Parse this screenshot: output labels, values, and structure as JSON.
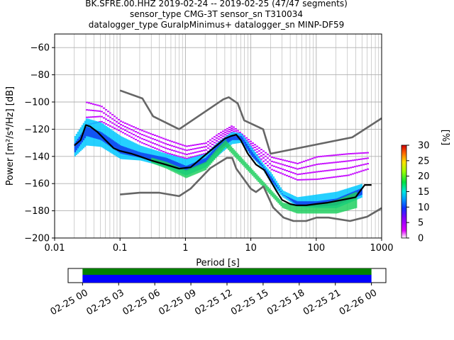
{
  "title_lines": [
    "BK.SFRE.00.HHZ   2019-02-24 -- 2019-02-25  (47/47 segments)",
    "sensor_type CMG-3T sensor_sn T310034",
    "datalogger_type GuralpMinimus+ datalogger_sn MINP-DF59"
  ],
  "chart_data": [
    {
      "type": "heatmap",
      "xlabel": "Period [s]",
      "ylabel": "Power [m²/s⁴/Hz] [dB]",
      "xscale": "log",
      "xlim": [
        0.01,
        1000
      ],
      "ylim": [
        -200,
        -50
      ],
      "xticks": [
        0.01,
        0.1,
        1,
        10,
        100,
        1000
      ],
      "xtick_labels": [
        "0.01",
        "0.1",
        "1",
        "10",
        "100",
        "1000"
      ],
      "yticks": [
        -200,
        -180,
        -160,
        -140,
        -120,
        -100,
        -80,
        -60
      ],
      "ytick_labels": [
        "−200",
        "−180",
        "−160",
        "−140",
        "−120",
        "−100",
        "−80",
        "−60"
      ],
      "grid": true,
      "colorbar": {
        "label": "[%]",
        "range": [
          0,
          30
        ],
        "ticks": [
          0,
          5,
          10,
          15,
          20,
          25,
          30
        ],
        "tick_labels": [
          "0",
          "5",
          "10",
          "15",
          "20",
          "25",
          "30"
        ]
      },
      "series": [
        {
          "role": "median",
          "color": "#000000",
          "x": [
            0.02,
            0.025,
            0.03,
            0.035,
            0.045,
            0.06,
            0.08,
            0.1,
            0.15,
            0.2,
            0.3,
            0.5,
            0.8,
            1.2,
            2,
            3,
            4,
            5,
            6,
            7,
            9,
            12,
            16,
            20,
            25,
            30,
            40,
            50,
            70,
            100,
            150,
            250,
            400,
            550,
            700
          ],
          "y": [
            -132,
            -128,
            -117,
            -118,
            -122,
            -128,
            -134,
            -136,
            -138,
            -140,
            -143,
            -146,
            -149,
            -148,
            -139,
            -132,
            -127,
            -125,
            -124,
            -128,
            -138,
            -146,
            -150,
            -158,
            -166,
            -172,
            -175,
            -176,
            -176,
            -175,
            -174,
            -172,
            -170,
            -161,
            -161
          ]
        },
        {
          "role": "noise-model-high",
          "color": "#666666",
          "x": [
            0.1,
            0.22,
            0.32,
            0.8,
            3.8,
            4.6,
            6.3,
            7.9,
            15.4,
            20,
            354.8,
            1000
          ],
          "y": [
            -91.5,
            -97.4,
            -110.5,
            -120,
            -98,
            -96.5,
            -101,
            -113.5,
            -120,
            -138,
            -126,
            -112
          ]
        },
        {
          "role": "noise-model-low",
          "color": "#666666",
          "x": [
            0.1,
            0.2,
            0.4,
            0.8,
            1.2,
            2.4,
            4.3,
            5.2,
            6,
            10,
            12,
            15.6,
            21.9,
            31.6,
            45,
            70,
            101,
            154,
            328,
            600,
            1000
          ],
          "y": [
            -168,
            -166.7,
            -166.7,
            -169.2,
            -163.7,
            -148.6,
            -141.1,
            -141.1,
            -149,
            -163.8,
            -166.2,
            -162.1,
            -177.5,
            -185,
            -187.5,
            -187.5,
            -185,
            -185,
            -187.5,
            -184.4,
            -178
          ]
        }
      ],
      "density_bands": [
        {
          "x": [
            0.02,
            0.03,
            0.05,
            0.1,
            0.2,
            0.5,
            1,
            2,
            3,
            5,
            7,
            10,
            15,
            20,
            30,
            50,
            100,
            200,
            500
          ],
          "y_low": [
            -140,
            -132,
            -133,
            -142,
            -143,
            -148,
            -154,
            -148,
            -140,
            -131,
            -130,
            -140,
            -150,
            -160,
            -170,
            -177,
            -178,
            -178,
            -170
          ],
          "y_high": [
            -125,
            -112,
            -115,
            -125,
            -132,
            -138,
            -142,
            -138,
            -130,
            -122,
            -123,
            -133,
            -145,
            -152,
            -165,
            -170,
            -168,
            -166,
            -160
          ],
          "color": "#00c8ff"
        },
        {
          "x": [
            0.02,
            0.03,
            0.05,
            0.1,
            0.2,
            0.5,
            1,
            2,
            3,
            5,
            7,
            10,
            15,
            20,
            30,
            50,
            100,
            200,
            500
          ],
          "y_low": [
            -137,
            -125,
            -128,
            -138,
            -141,
            -146,
            -151,
            -145,
            -136,
            -128,
            -128,
            -140,
            -148,
            -158,
            -168,
            -176,
            -177,
            -176,
            -168
          ],
          "y_high": [
            -130,
            -118,
            -122,
            -132,
            -137,
            -141,
            -147,
            -141,
            -132,
            -124,
            -125,
            -136,
            -147,
            -155,
            -168,
            -173,
            -173,
            -171,
            -163
          ],
          "color": "#1040f0"
        },
        {
          "x": [
            0.3,
            0.5,
            1,
            2,
            3,
            4,
            30,
            50,
            100,
            200,
            400
          ],
          "y_low": [
            -145,
            -149,
            -156,
            -150,
            -140,
            -133,
            -178,
            -182,
            -182,
            -182,
            -178
          ],
          "y_high": [
            -141,
            -144,
            -150,
            -144,
            -134,
            -128,
            -174,
            -176,
            -175,
            -172,
            -166
          ],
          "color": "#20d060"
        }
      ],
      "scatter_bands": [
        {
          "x": [
            0.03,
            0.05,
            0.1,
            0.2,
            0.5,
            1,
            2,
            3,
            5,
            10,
            20,
            50,
            100,
            300,
            600
          ],
          "y_low": [
            -118,
            -115,
            -122,
            -130,
            -138,
            -142,
            -138,
            -130,
            -122,
            -135,
            -150,
            -158,
            -158,
            -155,
            -150
          ],
          "y_high": [
            -96,
            -100,
            -112,
            -118,
            -125,
            -130,
            -128,
            -122,
            -116,
            -128,
            -138,
            -142,
            -136,
            -134,
            -134
          ],
          "color": "#c814ff"
        }
      ]
    },
    {
      "type": "timeline",
      "tick_labels": [
        "02-25 00",
        "02-25 03",
        "02-25 06",
        "02-25 09",
        "02-25 12",
        "02-25 15",
        "02-25 18",
        "02-25 21",
        "02-26 00"
      ],
      "hours": [
        0,
        3,
        6,
        9,
        12,
        15,
        18,
        21,
        24
      ],
      "range_hours": [
        -1.2,
        25.2
      ],
      "bars": [
        {
          "start": 0,
          "end": 24,
          "color": "#008000"
        },
        {
          "start": 0,
          "end": 24,
          "color": "#0000ff"
        }
      ]
    }
  ]
}
